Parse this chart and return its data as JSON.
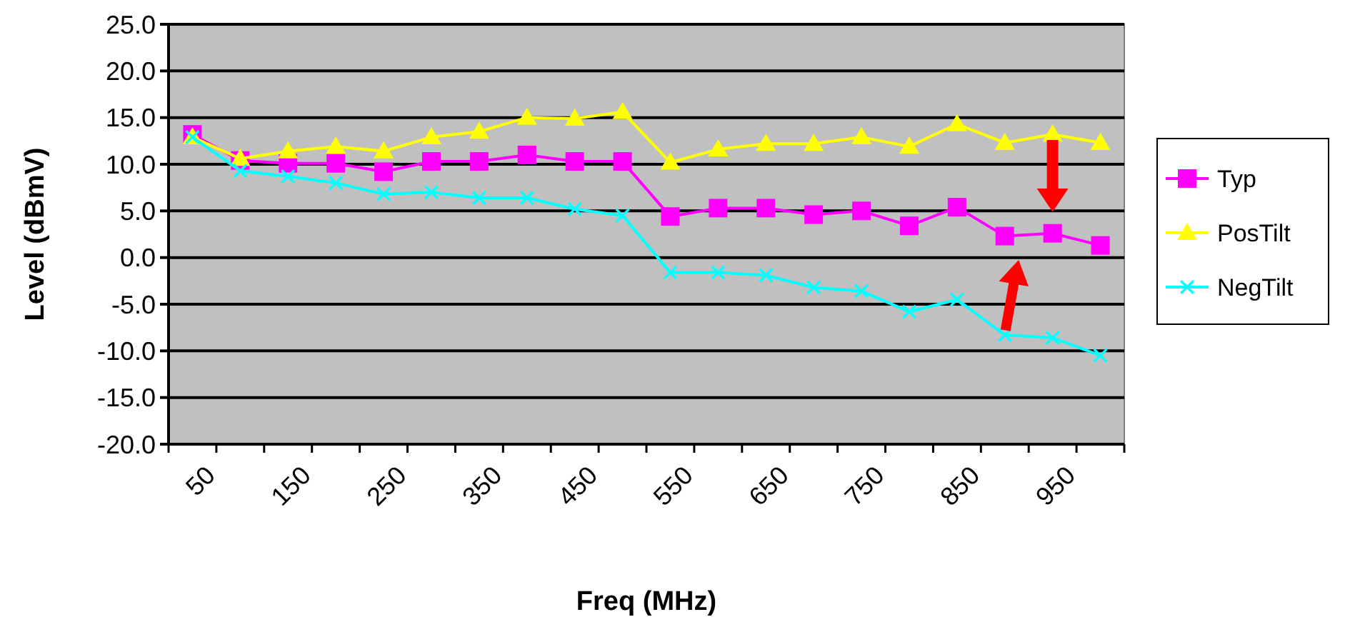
{
  "chart_data": {
    "type": "line",
    "xlabel": "Freq (MHz)",
    "ylabel": "Level (dBmV)",
    "categories": [
      "50",
      null,
      "150",
      null,
      "250",
      null,
      "350",
      null,
      "450",
      null,
      "550",
      null,
      "650",
      null,
      "750",
      null,
      "850",
      null,
      "950",
      null
    ],
    "series": [
      {
        "name": "Typ",
        "color": "#ff00ff",
        "marker": "square",
        "values": [
          13.2,
          10.4,
          10.1,
          10.1,
          9.2,
          10.3,
          10.3,
          11.0,
          10.3,
          10.3,
          4.4,
          5.3,
          5.3,
          4.6,
          5.0,
          3.4,
          5.4,
          2.3,
          2.6,
          1.3
        ]
      },
      {
        "name": "PosTilt",
        "color": "#ffff00",
        "marker": "triangle",
        "values": [
          12.9,
          10.6,
          11.4,
          11.9,
          11.4,
          12.9,
          13.5,
          15.0,
          14.9,
          15.6,
          10.2,
          11.6,
          12.2,
          12.2,
          12.9,
          11.9,
          14.3,
          12.3,
          13.2,
          12.3
        ]
      },
      {
        "name": "NegTilt",
        "color": "#00ffff",
        "marker": "cross",
        "values": [
          12.9,
          9.3,
          8.7,
          8.0,
          6.8,
          7.0,
          6.4,
          6.4,
          5.2,
          4.5,
          -1.6,
          -1.6,
          -1.9,
          -3.2,
          -3.6,
          -5.8,
          -4.5,
          -8.3,
          -8.6,
          -10.5
        ]
      }
    ],
    "ylim": [
      -20,
      25
    ],
    "yticks": [
      {
        "value": -20,
        "label": "-20.0"
      },
      {
        "value": -15,
        "label": "-15.0"
      },
      {
        "value": -10,
        "label": "-10.0"
      },
      {
        "value": -5,
        "label": "-5.0"
      },
      {
        "value": 0,
        "label": "0.0"
      },
      {
        "value": 5,
        "label": "5.0"
      },
      {
        "value": 10,
        "label": "10.0"
      },
      {
        "value": 15,
        "label": "15.0"
      },
      {
        "value": 20,
        "label": "20.0"
      },
      {
        "value": 25,
        "label": "25.0"
      }
    ],
    "grid": "y",
    "legend": "right",
    "line_style": "solid"
  }
}
